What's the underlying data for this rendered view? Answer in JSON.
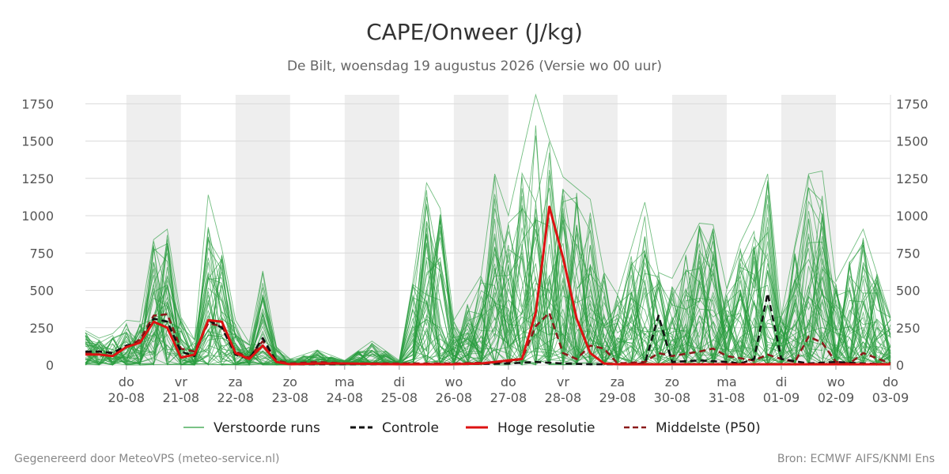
{
  "chart_data": {
    "type": "line",
    "title": "CAPE/Onweer (J/kg)",
    "subtitle": "De Bilt, woensdag 19 augustus 2026 (Versie wo 00 uur)",
    "ylim": [
      0,
      1810
    ],
    "y_ticks": [
      0,
      250,
      500,
      750,
      1000,
      1250,
      1500,
      1750
    ],
    "x_range_days": [
      -0.75,
      14
    ],
    "x_ticks": [
      {
        "day": "do",
        "date": "20-08"
      },
      {
        "day": "vr",
        "date": "21-08"
      },
      {
        "day": "za",
        "date": "22-08"
      },
      {
        "day": "zo",
        "date": "23-08"
      },
      {
        "day": "ma",
        "date": "24-08"
      },
      {
        "day": "di",
        "date": "25-08"
      },
      {
        "day": "wo",
        "date": "26-08"
      },
      {
        "day": "do",
        "date": "27-08"
      },
      {
        "day": "vr",
        "date": "28-08"
      },
      {
        "day": "za",
        "date": "29-08"
      },
      {
        "day": "zo",
        "date": "30-08"
      },
      {
        "day": "ma",
        "date": "31-08"
      },
      {
        "day": "di",
        "date": "01-09"
      },
      {
        "day": "wo",
        "date": "02-09"
      },
      {
        "day": "do",
        "date": "03-09"
      }
    ],
    "shaded_days": [
      "20-08",
      "22-08",
      "24-08",
      "26-08",
      "28-08",
      "30-08",
      "01-09"
    ],
    "grid": true,
    "legend_position": "bottom",
    "series": [
      {
        "name": "Hoge resolutie",
        "style": "solid",
        "color": "#dd1111",
        "points": [
          [
            -0.75,
            70
          ],
          [
            -0.5,
            70
          ],
          [
            -0.25,
            60
          ],
          [
            0,
            120
          ],
          [
            0.25,
            150
          ],
          [
            0.5,
            290
          ],
          [
            0.75,
            250
          ],
          [
            1,
            50
          ],
          [
            1.25,
            70
          ],
          [
            1.5,
            300
          ],
          [
            1.75,
            290
          ],
          [
            2,
            80
          ],
          [
            2.25,
            40
          ],
          [
            2.5,
            130
          ],
          [
            2.75,
            20
          ],
          [
            3,
            5
          ],
          [
            3.5,
            10
          ],
          [
            4,
            10
          ],
          [
            5,
            5
          ],
          [
            6,
            5
          ],
          [
            6.5,
            10
          ],
          [
            7,
            30
          ],
          [
            7.25,
            40
          ],
          [
            7.5,
            350
          ],
          [
            7.75,
            1060
          ],
          [
            8,
            720
          ],
          [
            8.25,
            310
          ],
          [
            8.5,
            80
          ],
          [
            8.75,
            10
          ],
          [
            9,
            5
          ],
          [
            10,
            5
          ],
          [
            11,
            5
          ],
          [
            12,
            5
          ],
          [
            13,
            5
          ],
          [
            14,
            5
          ]
        ]
      },
      {
        "name": "Controle",
        "style": "dashed",
        "color": "#111111",
        "points": [
          [
            -0.75,
            90
          ],
          [
            -0.5,
            90
          ],
          [
            -0.25,
            80
          ],
          [
            0,
            130
          ],
          [
            0.25,
            150
          ],
          [
            0.5,
            310
          ],
          [
            0.75,
            290
          ],
          [
            1,
            90
          ],
          [
            1.25,
            60
          ],
          [
            1.5,
            300
          ],
          [
            1.75,
            250
          ],
          [
            2,
            70
          ],
          [
            2.25,
            40
          ],
          [
            2.5,
            180
          ],
          [
            2.75,
            20
          ],
          [
            3,
            5
          ],
          [
            4,
            5
          ],
          [
            5,
            5
          ],
          [
            6,
            5
          ],
          [
            7,
            10
          ],
          [
            7.5,
            20
          ],
          [
            8,
            10
          ],
          [
            8.5,
            5
          ],
          [
            9,
            5
          ],
          [
            9.5,
            10
          ],
          [
            9.75,
            330
          ],
          [
            10,
            20
          ],
          [
            10.5,
            30
          ],
          [
            11,
            20
          ],
          [
            11.25,
            10
          ],
          [
            11.5,
            40
          ],
          [
            11.75,
            480
          ],
          [
            12,
            40
          ],
          [
            12.5,
            10
          ],
          [
            13,
            20
          ],
          [
            13.5,
            10
          ],
          [
            14,
            5
          ]
        ]
      },
      {
        "name": "Middelste (P50)",
        "style": "dashed",
        "color": "#8b1a1a",
        "points": [
          [
            -0.75,
            80
          ],
          [
            -0.5,
            90
          ],
          [
            -0.25,
            80
          ],
          [
            0,
            120
          ],
          [
            0.25,
            170
          ],
          [
            0.5,
            330
          ],
          [
            0.75,
            340
          ],
          [
            1,
            110
          ],
          [
            1.25,
            90
          ],
          [
            1.5,
            280
          ],
          [
            1.75,
            260
          ],
          [
            2,
            90
          ],
          [
            2.25,
            50
          ],
          [
            2.5,
            160
          ],
          [
            2.75,
            30
          ],
          [
            3,
            10
          ],
          [
            3.5,
            20
          ],
          [
            4,
            10
          ],
          [
            5,
            10
          ],
          [
            6,
            10
          ],
          [
            7,
            20
          ],
          [
            7.25,
            40
          ],
          [
            7.5,
            260
          ],
          [
            7.75,
            350
          ],
          [
            8,
            80
          ],
          [
            8.25,
            40
          ],
          [
            8.5,
            130
          ],
          [
            8.75,
            110
          ],
          [
            9,
            10
          ],
          [
            9.5,
            20
          ],
          [
            9.75,
            80
          ],
          [
            10,
            60
          ],
          [
            10.5,
            90
          ],
          [
            10.75,
            110
          ],
          [
            11,
            60
          ],
          [
            11.5,
            30
          ],
          [
            11.75,
            70
          ],
          [
            12,
            40
          ],
          [
            12.25,
            20
          ],
          [
            12.5,
            190
          ],
          [
            12.75,
            150
          ],
          [
            13,
            20
          ],
          [
            13.25,
            10
          ],
          [
            13.5,
            80
          ],
          [
            14,
            10
          ]
        ]
      }
    ],
    "ensemble": {
      "name": "Verstoorde runs",
      "color": "#2a9d3f",
      "members": 50,
      "upper_envelope": [
        [
          -0.75,
          230
        ],
        [
          -0.5,
          180
        ],
        [
          -0.25,
          210
        ],
        [
          0,
          300
        ],
        [
          0.25,
          290
        ],
        [
          0.5,
          840
        ],
        [
          0.75,
          910
        ],
        [
          1,
          320
        ],
        [
          1.25,
          170
        ],
        [
          1.5,
          1140
        ],
        [
          1.75,
          780
        ],
        [
          2,
          300
        ],
        [
          2.25,
          150
        ],
        [
          2.5,
          630
        ],
        [
          2.75,
          120
        ],
        [
          3,
          40
        ],
        [
          3.5,
          100
        ],
        [
          4,
          30
        ],
        [
          4.5,
          160
        ],
        [
          5,
          30
        ],
        [
          5.25,
          560
        ],
        [
          5.5,
          1220
        ],
        [
          5.75,
          1050
        ],
        [
          6,
          300
        ],
        [
          6.5,
          600
        ],
        [
          6.75,
          1280
        ],
        [
          7,
          1000
        ],
        [
          7.5,
          1810
        ],
        [
          7.75,
          1510
        ],
        [
          8,
          1260
        ],
        [
          8.5,
          1110
        ],
        [
          8.75,
          620
        ],
        [
          9,
          470
        ],
        [
          9.5,
          1090
        ],
        [
          9.75,
          620
        ],
        [
          10,
          580
        ],
        [
          10.5,
          950
        ],
        [
          10.75,
          940
        ],
        [
          11,
          510
        ],
        [
          11.25,
          820
        ],
        [
          11.5,
          1010
        ],
        [
          11.75,
          1280
        ],
        [
          12,
          330
        ],
        [
          12.5,
          1280
        ],
        [
          12.75,
          1300
        ],
        [
          13,
          560
        ],
        [
          13.5,
          910
        ],
        [
          14,
          320
        ]
      ]
    }
  },
  "legend": {
    "perturbed": "Verstoorde runs",
    "control": "Controle",
    "highres": "Hoge resolutie",
    "median": "Middelste (P50)"
  },
  "footer": {
    "left": "Gegenereerd door MeteoVPS (meteo-service.nl)",
    "right": "Bron: ECMWF AIFS/KNMI Ens"
  }
}
